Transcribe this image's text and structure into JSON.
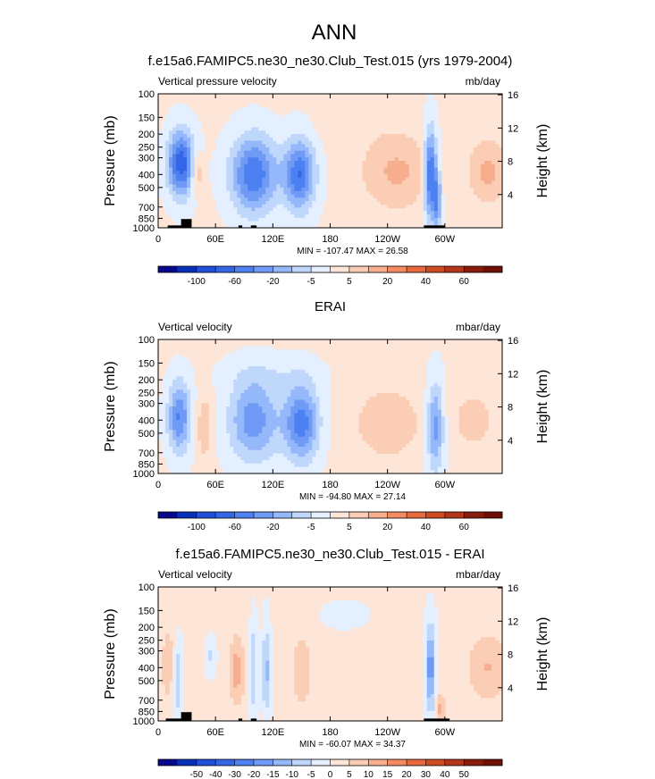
{
  "figure_title": "ANN",
  "colors": {
    "fill_scale": [
      "#08088a",
      "#0a2fb8",
      "#1f4fd6",
      "#3366e6",
      "#4d80f0",
      "#6f9af5",
      "#95b8fa",
      "#c0d7fc",
      "#e4efff",
      "#fde5d8",
      "#fbcdb5",
      "#f7ae8f",
      "#f28a62",
      "#e66a3c",
      "#cf4b22",
      "#b3361a",
      "#8a1a0a",
      "#6e0f05"
    ],
    "land": "#000000"
  },
  "chart_data": [
    {
      "type": "heatmap",
      "title": "f.e15a6.FAMIPC5.ne30_ne30.Club_Test.015 (yrs 1979-2004)",
      "left_label": "Vertical pressure velocity",
      "units": "mb/day",
      "ylabel": "Pressure (mb)",
      "ylabel_right": "Height (km)",
      "x_ticks": [
        "0",
        "60E",
        "120E",
        "180",
        "120W",
        "60W"
      ],
      "x_tick_values": [
        0,
        60,
        120,
        180,
        240,
        300
      ],
      "xlim": [
        0,
        360
      ],
      "y_ticks": [
        "100",
        "150",
        "200",
        "250",
        "300",
        "400",
        "500",
        "700",
        "850",
        "1000"
      ],
      "y_tick_values": [
        100,
        150,
        200,
        250,
        300,
        400,
        500,
        700,
        850,
        1000
      ],
      "ylim": [
        100,
        1000
      ],
      "y_scale": "log",
      "y2_ticks": [
        "16",
        "12",
        "8",
        "4"
      ],
      "y2_tick_values": [
        16,
        12,
        8,
        4
      ],
      "stats": "MIN = -107.47  MAX =  26.58",
      "colorbar_labels": [
        "-100",
        "",
        "-60",
        "",
        "-20",
        "",
        "-5",
        "",
        "5",
        "",
        "20",
        "",
        "40",
        "",
        "60"
      ],
      "field": {
        "blobs": [
          {
            "lon": 24,
            "p": 330,
            "w": 14,
            "h": 0.55,
            "amp": -70
          },
          {
            "lon": 40,
            "p": 380,
            "w": 6,
            "h": 0.35,
            "amp": 28
          },
          {
            "lon": 100,
            "p": 400,
            "w": 24,
            "h": 0.65,
            "amp": -60
          },
          {
            "lon": 148,
            "p": 400,
            "w": 16,
            "h": 0.6,
            "amp": -60
          },
          {
            "lon": 250,
            "p": 380,
            "w": 38,
            "h": 0.65,
            "amp": 24
          },
          {
            "lon": 285,
            "p": 400,
            "w": 7,
            "h": 0.75,
            "amp": -70
          },
          {
            "lon": 292,
            "p": 650,
            "w": 4,
            "h": 0.5,
            "amp": -40
          },
          {
            "lon": 345,
            "p": 380,
            "w": 20,
            "h": 0.55,
            "amp": 25
          },
          {
            "lon": 200,
            "p": 180,
            "w": 40,
            "h": 0.3,
            "amp": 4
          }
        ]
      },
      "land": [
        {
          "lon": [
            10,
            28
          ],
          "p": 960
        },
        {
          "lon": [
            24,
            35
          ],
          "p": 860
        },
        {
          "lon": [
            84,
            88
          ],
          "p": 960
        },
        {
          "lon": [
            97,
            103
          ],
          "p": 960
        },
        {
          "lon": [
            278,
            300
          ],
          "p": 960
        }
      ]
    },
    {
      "type": "heatmap",
      "title": "ERAI",
      "left_label": "Vertical velocity",
      "units": "mbar/day",
      "ylabel": "Pressure (mb)",
      "ylabel_right": "Height (km)",
      "x_ticks": [
        "0",
        "60E",
        "120E",
        "180",
        "120W",
        "60W"
      ],
      "x_tick_values": [
        0,
        60,
        120,
        180,
        240,
        300
      ],
      "xlim": [
        0,
        360
      ],
      "y_ticks": [
        "100",
        "150",
        "200",
        "250",
        "300",
        "400",
        "500",
        "700",
        "850",
        "1000"
      ],
      "y_tick_values": [
        100,
        150,
        200,
        250,
        300,
        400,
        500,
        700,
        850,
        1000
      ],
      "ylim": [
        100,
        1000
      ],
      "y_scale": "log",
      "y2_ticks": [
        "16",
        "12",
        "8",
        "4"
      ],
      "y2_tick_values": [
        16,
        12,
        8,
        4
      ],
      "stats": "MIN = -94.80  MAX =  27.14",
      "colorbar_labels": [
        "-100",
        "",
        "-60",
        "",
        "-20",
        "",
        "-5",
        "",
        "5",
        "",
        "20",
        "",
        "40",
        "",
        "60"
      ],
      "field": {
        "blobs": [
          {
            "lon": 22,
            "p": 380,
            "w": 12,
            "h": 0.6,
            "amp": -50
          },
          {
            "lon": 48,
            "p": 450,
            "w": 8,
            "h": 0.55,
            "amp": 20
          },
          {
            "lon": 100,
            "p": 400,
            "w": 26,
            "h": 0.7,
            "amp": -45
          },
          {
            "lon": 150,
            "p": 420,
            "w": 18,
            "h": 0.65,
            "amp": -55
          },
          {
            "lon": 240,
            "p": 420,
            "w": 40,
            "h": 0.7,
            "amp": 17
          },
          {
            "lon": 290,
            "p": 450,
            "w": 9,
            "h": 0.75,
            "amp": -45
          },
          {
            "lon": 330,
            "p": 400,
            "w": 25,
            "h": 0.6,
            "amp": 14
          },
          {
            "lon": 120,
            "p": 180,
            "w": 50,
            "h": 0.3,
            "amp": -8
          }
        ]
      },
      "land": []
    },
    {
      "type": "heatmap",
      "title": "f.e15a6.FAMIPC5.ne30_ne30.Club_Test.015 - ERAI",
      "left_label": "Vertical velocity",
      "units": "mbar/day",
      "ylabel": "Pressure (mb)",
      "ylabel_right": "Height (km)",
      "x_ticks": [
        "0",
        "60E",
        "120E",
        "180",
        "120W",
        "60W"
      ],
      "x_tick_values": [
        0,
        60,
        120,
        180,
        240,
        300
      ],
      "xlim": [
        0,
        360
      ],
      "y_ticks": [
        "100",
        "150",
        "200",
        "250",
        "300",
        "400",
        "500",
        "700",
        "850",
        "1000"
      ],
      "y_tick_values": [
        100,
        150,
        200,
        250,
        300,
        400,
        500,
        700,
        850,
        1000
      ],
      "ylim": [
        100,
        1000
      ],
      "y_scale": "log",
      "y2_ticks": [
        "16",
        "12",
        "8",
        "4"
      ],
      "y2_tick_values": [
        16,
        12,
        8,
        4
      ],
      "stats": "MIN = -60.07  MAX = 34.37",
      "colorbar_labels": [
        "-50",
        "-40",
        "-30",
        "-20",
        "-15",
        "-10",
        "-5",
        "0",
        "5",
        "10",
        "15",
        "20",
        "30",
        "40",
        "50"
      ],
      "field": {
        "blobs": [
          {
            "lon": 10,
            "p": 380,
            "w": 6,
            "h": 0.6,
            "amp": 22
          },
          {
            "lon": 20,
            "p": 500,
            "w": 5,
            "h": 0.6,
            "amp": -25
          },
          {
            "lon": 55,
            "p": 330,
            "w": 5,
            "h": 0.3,
            "amp": -15
          },
          {
            "lon": 82,
            "p": 420,
            "w": 8,
            "h": 0.6,
            "amp": 28
          },
          {
            "lon": 100,
            "p": 420,
            "w": 4,
            "h": 0.8,
            "amp": -25
          },
          {
            "lon": 113,
            "p": 420,
            "w": 4,
            "h": 0.8,
            "amp": -30
          },
          {
            "lon": 150,
            "p": 420,
            "w": 10,
            "h": 0.6,
            "amp": 22
          },
          {
            "lon": 195,
            "p": 160,
            "w": 25,
            "h": 0.25,
            "amp": -6
          },
          {
            "lon": 285,
            "p": 400,
            "w": 5,
            "h": 0.75,
            "amp": -45
          },
          {
            "lon": 345,
            "p": 400,
            "w": 22,
            "h": 0.6,
            "amp": 22
          },
          {
            "lon": 295,
            "p": 800,
            "w": 5,
            "h": 0.25,
            "amp": 25
          }
        ]
      },
      "land": [
        {
          "lon": [
            8,
            28
          ],
          "p": 960
        },
        {
          "lon": [
            24,
            35
          ],
          "p": 860
        },
        {
          "lon": [
            84,
            88
          ],
          "p": 960
        },
        {
          "lon": [
            97,
            103
          ],
          "p": 960
        },
        {
          "lon": [
            278,
            305
          ],
          "p": 960
        }
      ]
    }
  ]
}
